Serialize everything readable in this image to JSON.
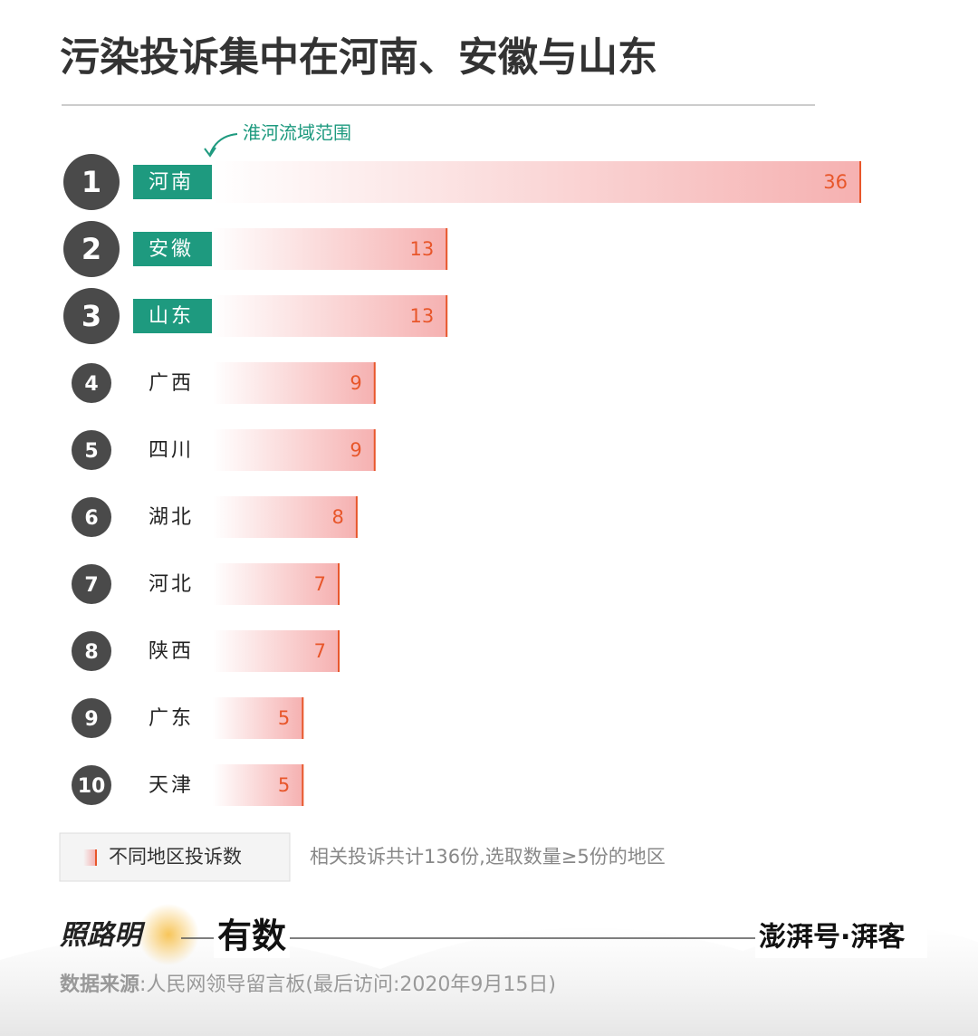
{
  "chart_data": {
    "type": "bar",
    "title": "污染投诉集中在河南、安徽与山东",
    "annotation": "淮河流域范围",
    "ranks": [
      1,
      2,
      3,
      4,
      5,
      6,
      7,
      8,
      9,
      10
    ],
    "categories": [
      "河南",
      "安徽",
      "山东",
      "广西",
      "四川",
      "湖北",
      "河北",
      "陕西",
      "广东",
      "天津"
    ],
    "highlighted": [
      true,
      true,
      true,
      false,
      false,
      false,
      false,
      false,
      false,
      false
    ],
    "highlight_color": "#1e9a7f",
    "series": [
      {
        "name": "不同地区投诉数",
        "color": "#f4a3a3",
        "edge_color": "#e8562a",
        "values": [
          36,
          13,
          13,
          9,
          9,
          8,
          7,
          7,
          5,
          5
        ]
      }
    ],
    "note": "相关投诉共计136份,选取数量≥5份的地区"
  },
  "footer": {
    "brand_left": "照路明",
    "brand_mid": "有数",
    "brand_right": "澎湃号·湃客",
    "source_label": "数据来源",
    "source_text": ":人民网领导留言板(最后访问:2020年9月15日)"
  }
}
